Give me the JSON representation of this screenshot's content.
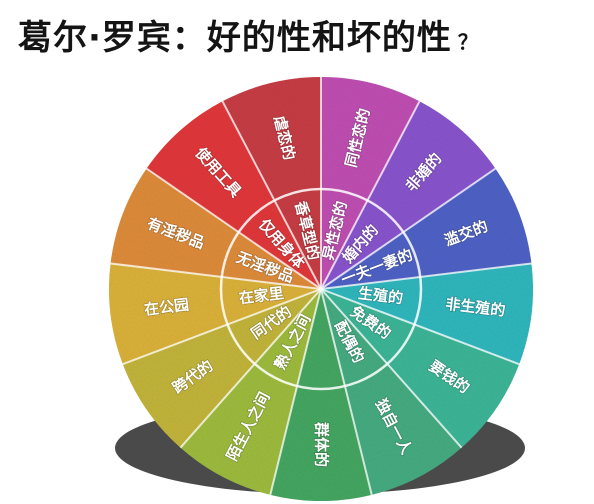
{
  "title": {
    "main": "葛尔·罗宾：好的性和坏的性",
    "mark": "？"
  },
  "colors": {
    "magenta": "#c14fb4",
    "purple": "#8a55cf",
    "blue": "#4f63c8",
    "teal": "#2fb9bf",
    "green_teal": "#3db798",
    "green": "#45a862",
    "yellow_green": "#9fbd3e",
    "yellow": "#ddb33a",
    "orange": "#e08d3a",
    "orange_red": "#e0683a",
    "red": "#e3383b",
    "dark_red": "#c93d45"
  },
  "segments": [
    {
      "outer": "同性恋的",
      "inner": "异性恋的",
      "color": "#c14fb4"
    },
    {
      "outer": "非婚的",
      "inner": "婚内的",
      "color": "#8a55cf"
    },
    {
      "outer": "滥交的",
      "inner": "一夫一妻的",
      "color": "#4f63c8"
    },
    {
      "outer": "非生殖的",
      "inner": "生殖的",
      "color": "#2fb9bf"
    },
    {
      "outer": "要钱的",
      "inner": "免费的",
      "color": "#3db798"
    },
    {
      "outer": "独自一人",
      "inner": "配偶的",
      "color": "#46ad82"
    },
    {
      "outer": "群体的",
      "inner": "",
      "color": "#45a862"
    },
    {
      "outer": "陌生人之间",
      "inner": "熟人之间",
      "color": "#9fbd3e"
    },
    {
      "outer": "跨代的",
      "inner": "同代的",
      "color": "#c4b63b"
    },
    {
      "outer": "在公园",
      "inner": "在家里",
      "color": "#ddb33a"
    },
    {
      "outer": "有淫秽品",
      "inner": "无淫秽品",
      "color": "#e08d3a"
    },
    {
      "outer": "使用工具",
      "inner": "仅用身体",
      "color": "#e3383b"
    },
    {
      "outer": "虐恋的",
      "inner": "香草型的",
      "color": "#c93d45"
    }
  ]
}
